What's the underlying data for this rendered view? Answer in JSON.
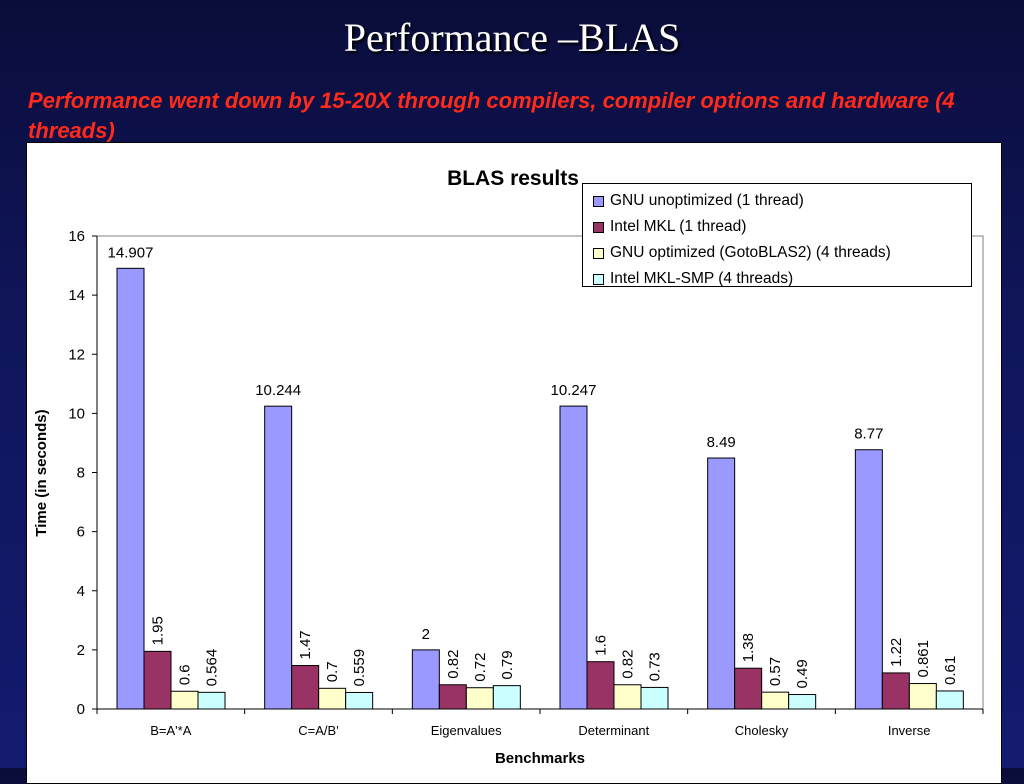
{
  "slide": {
    "title": "Performance –BLAS",
    "subtitle": "Performance went down by 15-20X through compilers, compiler options and hardware (4 threads)"
  },
  "chart_data": {
    "type": "bar",
    "title": "BLAS  results",
    "xlabel": "Benchmarks",
    "ylabel": "Time (in seconds)",
    "ylim": [
      0,
      16
    ],
    "yticks": [
      0,
      2,
      4,
      6,
      8,
      10,
      12,
      14,
      16
    ],
    "grid": false,
    "legend_position": "top-right",
    "categories": [
      "B=A'*A",
      "C=A/B'",
      "Eigenvalues",
      "Determinant",
      "Cholesky",
      "Inverse"
    ],
    "series": [
      {
        "name": "GNU unoptimized (1 thread)",
        "color": "#9999ff",
        "values": [
          14.907,
          10.244,
          2,
          10.247,
          8.49,
          8.77
        ],
        "labels": [
          "14.907",
          "10.244",
          "2",
          "10.247",
          "8.49",
          "8.77"
        ]
      },
      {
        "name": "Intel MKL (1 thread)",
        "color": "#993366",
        "values": [
          1.95,
          1.47,
          0.82,
          1.6,
          1.38,
          1.22
        ],
        "labels": [
          "1.95",
          "1.47",
          "0.82",
          "1.6",
          "1.38",
          "1.22"
        ]
      },
      {
        "name": "GNU optimized (GotoBLAS2) (4 threads)",
        "color": "#ffffcc",
        "values": [
          0.6,
          0.7,
          0.72,
          0.82,
          0.57,
          0.861
        ],
        "labels": [
          "0.6",
          "0.7",
          "0.72",
          "0.82",
          "0.57",
          "0.861"
        ]
      },
      {
        "name": "Intel MKL-SMP (4 threads)",
        "color": "#ccffff",
        "values": [
          0.564,
          0.559,
          0.79,
          0.73,
          0.49,
          0.61
        ],
        "labels": [
          "0.564",
          "0.559",
          "0.79",
          "0.73",
          "0.49",
          "0.61"
        ]
      }
    ]
  }
}
